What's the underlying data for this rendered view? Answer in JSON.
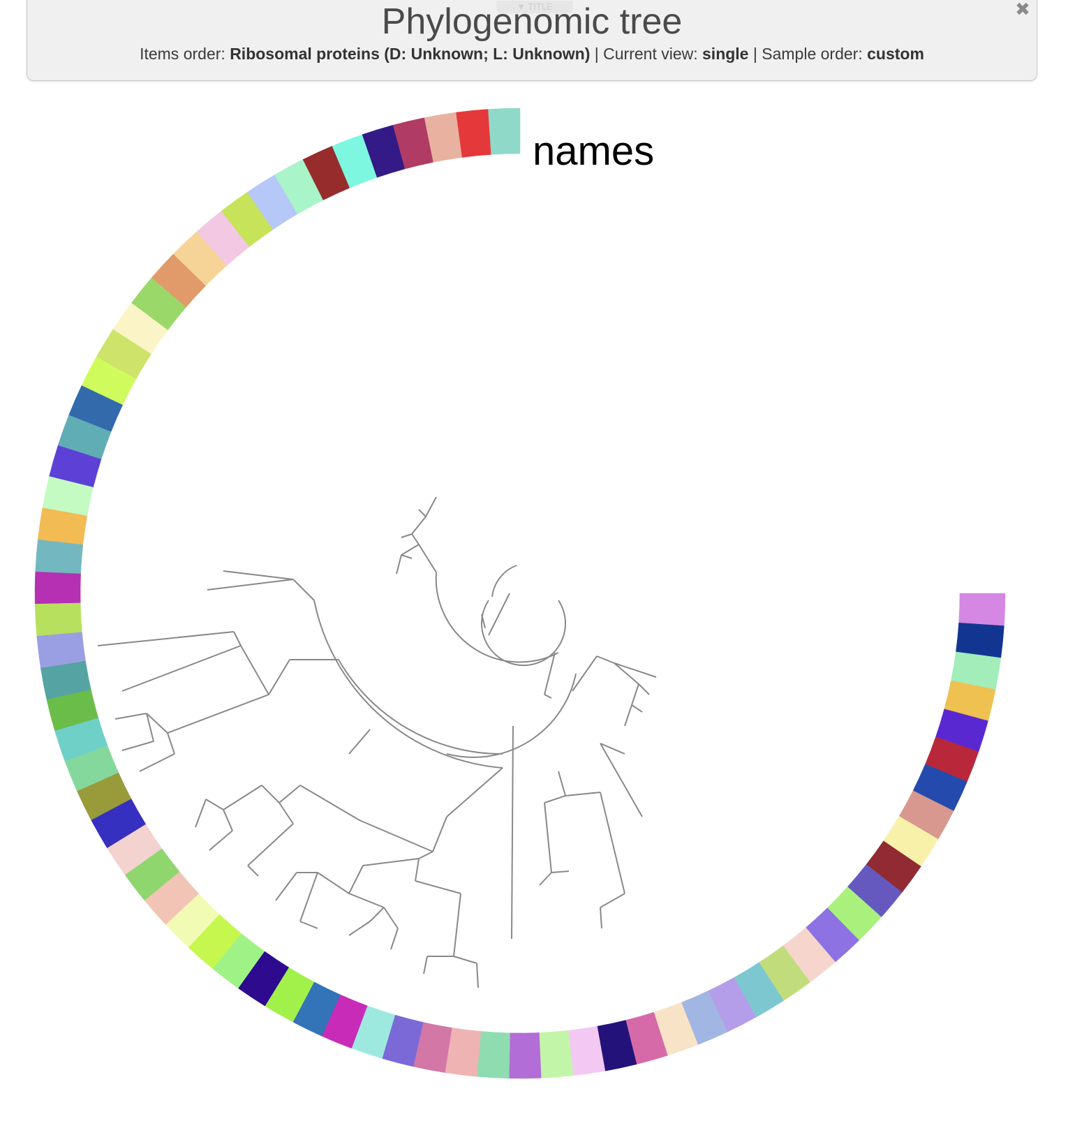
{
  "header": {
    "toggle_label": "▼ TITLE",
    "title": "Phylogenomic tree",
    "items_order_label": "Items order:",
    "items_order_value": "Ribosomal proteins (D: Unknown; L: Unknown)",
    "sep1": "|",
    "current_view_label": "Current view:",
    "current_view_value": "single",
    "sep2": "|",
    "sample_order_label": "Sample order:",
    "sample_order_value": "custom",
    "close_icon": "close-icon"
  },
  "tree": {
    "layer_name": "names",
    "tree_line_color": "#888888",
    "layer_colors": [
      "#8fd9c9",
      "#e5383b",
      "#e8b1a0",
      "#b03b64",
      "#331a86",
      "#7ef7e0",
      "#962c2c",
      "#a9f4c8",
      "#b5c8f8",
      "#c7e35a",
      "#f2c8e3",
      "#f6d497",
      "#e19a6a",
      "#9ad86a",
      "#fbf4c6",
      "#cde36a",
      "#cffc5c",
      "#326aab",
      "#61adb5",
      "#5d41d6",
      "#c3fbc2",
      "#f2bb53",
      "#73b8c1",
      "#b530b2",
      "#b7e05e",
      "#9a9fe3",
      "#56a3a3",
      "#6bbd49",
      "#6fd0c8",
      "#85d89c",
      "#999a3a",
      "#3530bf",
      "#f4d2d0",
      "#8fd66f",
      "#f2c4b6",
      "#f2fbb4",
      "#c6f74f",
      "#9ff286",
      "#2e0b8e",
      "#a2f14a",
      "#3373b7",
      "#c82bb8",
      "#9de9e0",
      "#7b69d8",
      "#d277a6",
      "#efb3b3",
      "#8fdcb1",
      "#b26ed6",
      "#c3f5a9",
      "#f3c8f2",
      "#24127b",
      "#d66aa8",
      "#f8e3c6",
      "#a1b6e2",
      "#b49ee9",
      "#7dc8d0",
      "#c1dd7b",
      "#f5d5cc",
      "#8c72e3",
      "#a9f17c",
      "#6559c0",
      "#922a33",
      "#f8f1a9",
      "#d8978f",
      "#244aad",
      "#b8283a",
      "#5a28d0",
      "#eec150",
      "#a2edba",
      "#133592",
      "#d488e3"
    ]
  }
}
